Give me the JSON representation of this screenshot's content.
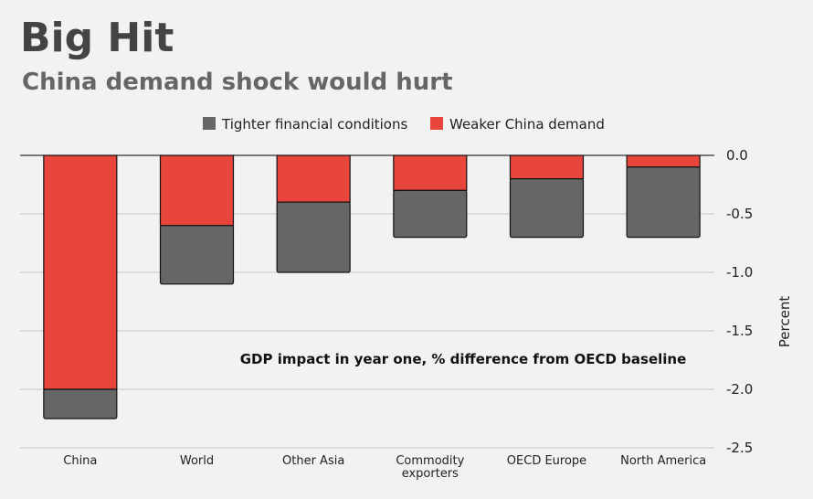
{
  "title": "Big Hit",
  "subtitle": "China demand shock would hurt",
  "chart_data": {
    "type": "bar",
    "stacked": true,
    "categories": [
      "China",
      "World",
      "Other Asia",
      "Commodity exporters",
      "OECD Europe",
      "North America"
    ],
    "series": [
      {
        "name": "Weaker China demand",
        "color": "#e8453c",
        "values": [
          -2.0,
          -0.6,
          -0.4,
          -0.3,
          -0.2,
          -0.1
        ]
      },
      {
        "name": "Tighter financial conditions",
        "color": "#666666",
        "values": [
          -0.25,
          -0.5,
          -0.6,
          -0.4,
          -0.5,
          -0.6
        ]
      }
    ],
    "legend_order": [
      "Tighter financial conditions",
      "Weaker China demand"
    ],
    "ylabel": "Percent",
    "ylim": [
      -2.5,
      0
    ],
    "yticks": [
      "0.0",
      "-0.5",
      "-1.0",
      "-1.5",
      "-2.0",
      "-2.5"
    ],
    "ytick_values": [
      0,
      -0.5,
      -1,
      -1.5,
      -2,
      -2.5
    ],
    "annotation": "GDP impact in year one, % difference from OECD baseline",
    "grid": true,
    "legend_position": "top"
  }
}
